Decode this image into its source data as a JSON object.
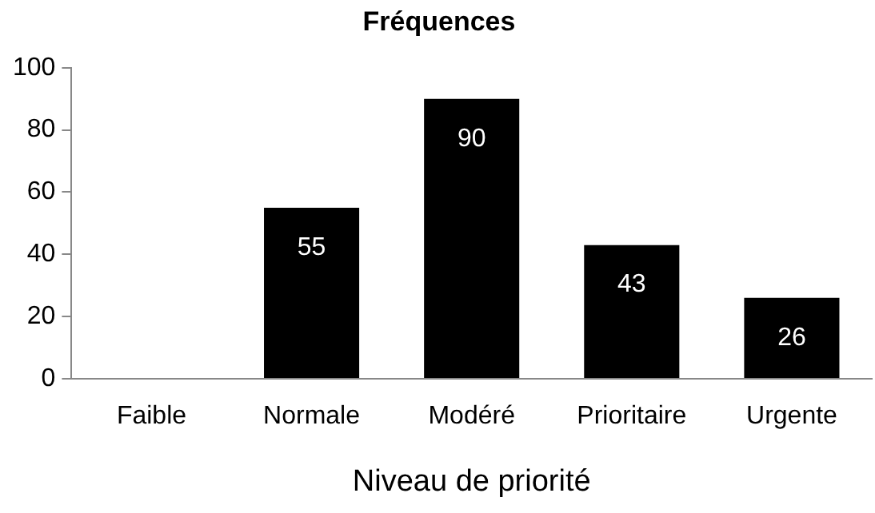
{
  "chart_data": {
    "type": "bar",
    "title": "Fréquences",
    "xlabel": "Niveau de priorité",
    "categories": [
      "Faible",
      "Normale",
      "Modéré",
      "Prioritaire",
      "Urgente"
    ],
    "values": [
      null,
      55,
      90,
      43,
      26
    ],
    "color": "#000000",
    "ylim": [
      0,
      100
    ],
    "yticks": [
      0,
      20,
      40,
      60,
      80,
      100
    ],
    "grid": false,
    "legend": false,
    "data_labels": true
  }
}
